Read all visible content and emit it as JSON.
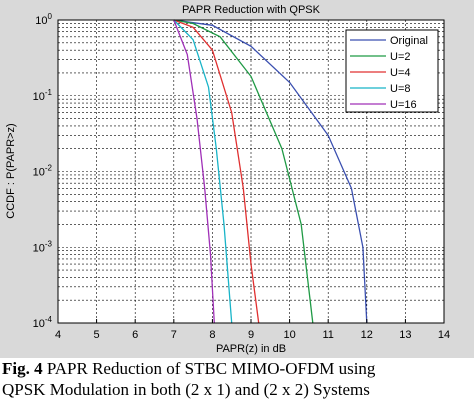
{
  "chart_data": {
    "type": "line",
    "title": "PAPR Reduction with QPSK",
    "xlabel": "PAPR(z) in dB",
    "ylabel": "CCDF : P(PAPR>z)",
    "x_ticks": [
      "4",
      "5",
      "6",
      "7",
      "8",
      "9",
      "10",
      "11",
      "12",
      "13",
      "14"
    ],
    "y_ticks": [
      {
        "base": "10",
        "exp": "0",
        "value": 1
      },
      {
        "base": "10",
        "exp": "-1",
        "value": 0.1
      },
      {
        "base": "10",
        "exp": "-2",
        "value": 0.01
      },
      {
        "base": "10",
        "exp": "-3",
        "value": 0.001
      },
      {
        "base": "10",
        "exp": "-4",
        "value": 0.0001
      }
    ],
    "xlim": [
      4,
      14
    ],
    "ylim": [
      0.0001,
      1
    ],
    "y_scale": "log",
    "grid": true,
    "legend_position": "top-right",
    "series": [
      {
        "name": "Original",
        "color": "#3a4fb0",
        "points": [
          [
            7,
            1
          ],
          [
            8,
            0.85
          ],
          [
            9,
            0.45
          ],
          [
            10,
            0.15
          ],
          [
            11,
            0.03
          ],
          [
            11.6,
            0.006
          ],
          [
            11.9,
            0.001
          ],
          [
            12,
            0.0001
          ]
        ]
      },
      {
        "name": "U=2",
        "color": "#1f9a45",
        "points": [
          [
            7,
            1
          ],
          [
            7.5,
            0.9
          ],
          [
            8.2,
            0.6
          ],
          [
            9,
            0.18
          ],
          [
            9.8,
            0.02
          ],
          [
            10.3,
            0.002
          ],
          [
            10.6,
            0.0001
          ]
        ]
      },
      {
        "name": "U=4",
        "color": "#e03030",
        "points": [
          [
            7,
            1
          ],
          [
            7.5,
            0.8
          ],
          [
            8,
            0.4
          ],
          [
            8.5,
            0.06
          ],
          [
            8.8,
            0.006
          ],
          [
            9,
            0.0006
          ],
          [
            9.2,
            0.0001
          ]
        ]
      },
      {
        "name": "U=8",
        "color": "#18b4c8",
        "points": [
          [
            7,
            1
          ],
          [
            7.5,
            0.55
          ],
          [
            7.9,
            0.13
          ],
          [
            8.1,
            0.02
          ],
          [
            8.3,
            0.002
          ],
          [
            8.5,
            0.0001
          ]
        ]
      },
      {
        "name": "U=16",
        "color": "#a030b8",
        "points": [
          [
            7,
            1
          ],
          [
            7.35,
            0.35
          ],
          [
            7.6,
            0.05
          ],
          [
            7.8,
            0.006
          ],
          [
            7.95,
            0.0008
          ],
          [
            8.05,
            0.0001
          ]
        ]
      }
    ]
  },
  "caption": {
    "fig_label": "Fig. 4",
    "line1_rest": " PAPR Reduction of STBC MIMO-OFDM using",
    "line2": "QPSK Modulation in both (2 x 1) and (2 x 2) Systems"
  }
}
